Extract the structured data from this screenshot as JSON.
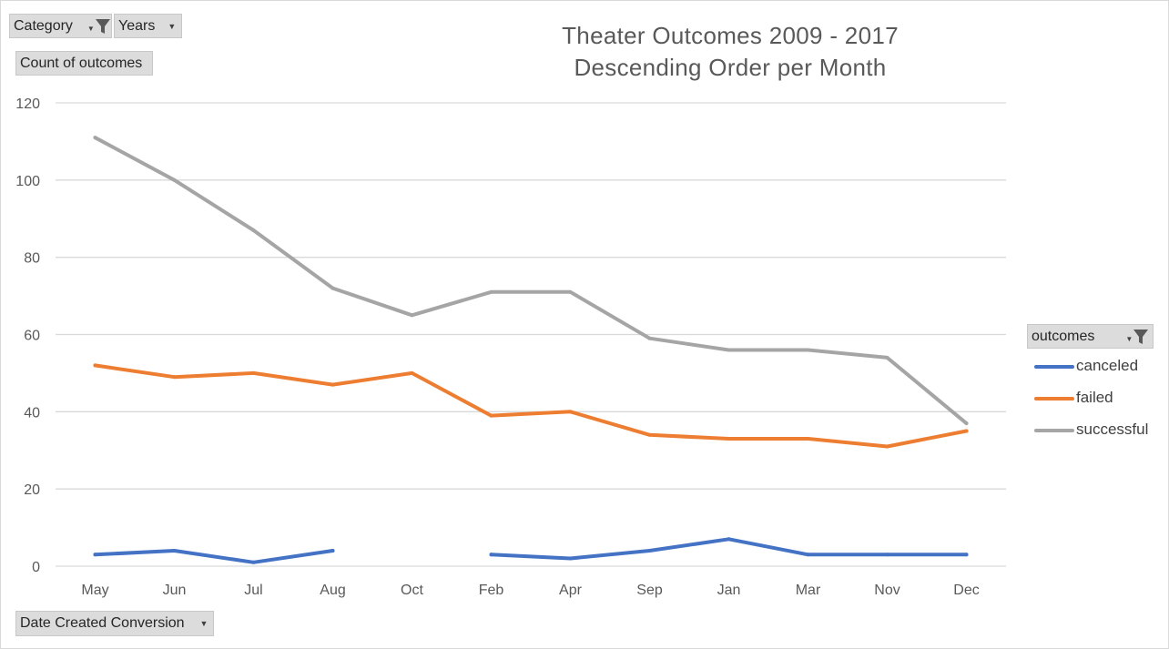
{
  "filters": {
    "category_label": "Category",
    "years_label": "Years",
    "value_field_label": "Count of outcomes",
    "axis_field_label": "Date Created Conversion",
    "legend_field_label": "outcomes"
  },
  "chart_data": {
    "type": "line",
    "title": "Theater Outcomes 2009 - 2017",
    "subtitle": "Descending Order per Month",
    "xlabel": "",
    "ylabel": "",
    "ylim": [
      0,
      120
    ],
    "yticks": [
      0,
      20,
      40,
      60,
      80,
      100,
      120
    ],
    "grid": true,
    "legend_position": "right",
    "categories": [
      "May",
      "Jun",
      "Jul",
      "Aug",
      "Oct",
      "Feb",
      "Apr",
      "Sep",
      "Jan",
      "Mar",
      "Nov",
      "Dec"
    ],
    "series": [
      {
        "name": "canceled",
        "color": "#4472c4",
        "values": [
          3,
          4,
          1,
          4,
          null,
          3,
          2,
          4,
          7,
          3,
          3,
          3
        ]
      },
      {
        "name": "failed",
        "color": "#ed7d31",
        "values": [
          52,
          49,
          50,
          47,
          50,
          39,
          40,
          34,
          33,
          33,
          31,
          35
        ]
      },
      {
        "name": "successful",
        "color": "#a5a5a5",
        "values": [
          111,
          100,
          87,
          72,
          65,
          71,
          71,
          59,
          56,
          56,
          54,
          37
        ]
      }
    ]
  }
}
